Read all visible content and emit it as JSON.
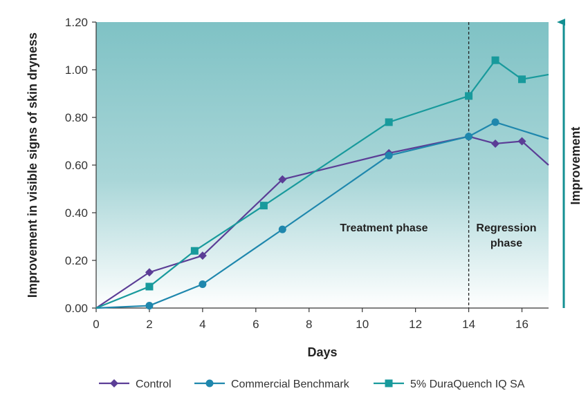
{
  "chart_data": {
    "type": "line",
    "xlabel": "Days",
    "ylabel": "Improvement in visible signs of skin dryness",
    "xlim": [
      0,
      17
    ],
    "ylim": [
      0,
      1.2
    ],
    "xticks": [
      0,
      2,
      4,
      6,
      8,
      10,
      12,
      14,
      16
    ],
    "yticks": [
      "0.00",
      "0.20",
      "0.40",
      "0.60",
      "0.80",
      "1.00",
      "1.20"
    ],
    "grid": false,
    "legend": "bottom",
    "annotations": {
      "treatment": "Treatment phase",
      "regression_line1": "Regression",
      "regression_line2": "phase",
      "side_arrow": "Improvement",
      "phase_divider_day": 14
    },
    "series": [
      {
        "name": "Control",
        "marker": "diamond",
        "color": "#5b3d96",
        "x": [
          0,
          2,
          4,
          7,
          11,
          14,
          15,
          16,
          17
        ],
        "y": [
          0.0,
          0.15,
          0.22,
          0.54,
          0.65,
          0.72,
          0.69,
          0.7,
          0.6
        ]
      },
      {
        "name": "Commercial Benchmark",
        "marker": "circle",
        "color": "#1f87ad",
        "x": [
          0,
          2,
          4,
          7,
          11,
          14,
          15,
          17
        ],
        "y": [
          0.0,
          0.01,
          0.1,
          0.33,
          0.64,
          0.72,
          0.78,
          0.71
        ]
      },
      {
        "name": "5% DuraQuench IQ SA",
        "marker": "square",
        "color": "#189a9c",
        "x": [
          0,
          2,
          3.7,
          6.3,
          11,
          14,
          15,
          16,
          17
        ],
        "y": [
          0.0,
          0.09,
          0.24,
          0.43,
          0.78,
          0.89,
          1.04,
          0.96,
          0.98
        ]
      }
    ]
  }
}
